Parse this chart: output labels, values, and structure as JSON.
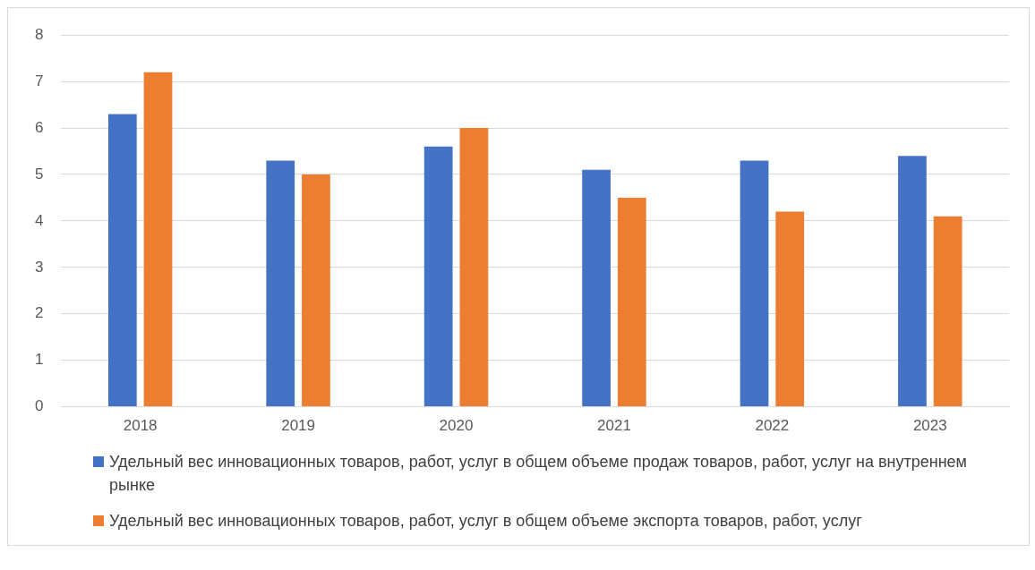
{
  "chart_data": {
    "type": "bar",
    "categories": [
      "2018",
      "2019",
      "2020",
      "2021",
      "2022",
      "2023"
    ],
    "series": [
      {
        "name": "Удельный вес инновационных товаров, работ, услуг в общем объеме продаж товаров, работ, услуг на внутреннем рынке",
        "color": "#4472c4",
        "values": [
          6.3,
          5.3,
          5.6,
          5.1,
          5.3,
          5.4
        ]
      },
      {
        "name": "Удельный вес инновационных товаров, работ, услуг в общем объеме экспорта товаров, работ, услуг",
        "color": "#ed7d31",
        "values": [
          7.2,
          5.0,
          6.0,
          4.5,
          4.2,
          4.1
        ]
      }
    ],
    "ylim": [
      0,
      8
    ],
    "yticks": [
      0,
      1,
      2,
      3,
      4,
      5,
      6,
      7,
      8
    ],
    "grid": "y",
    "legend": "bottom"
  }
}
